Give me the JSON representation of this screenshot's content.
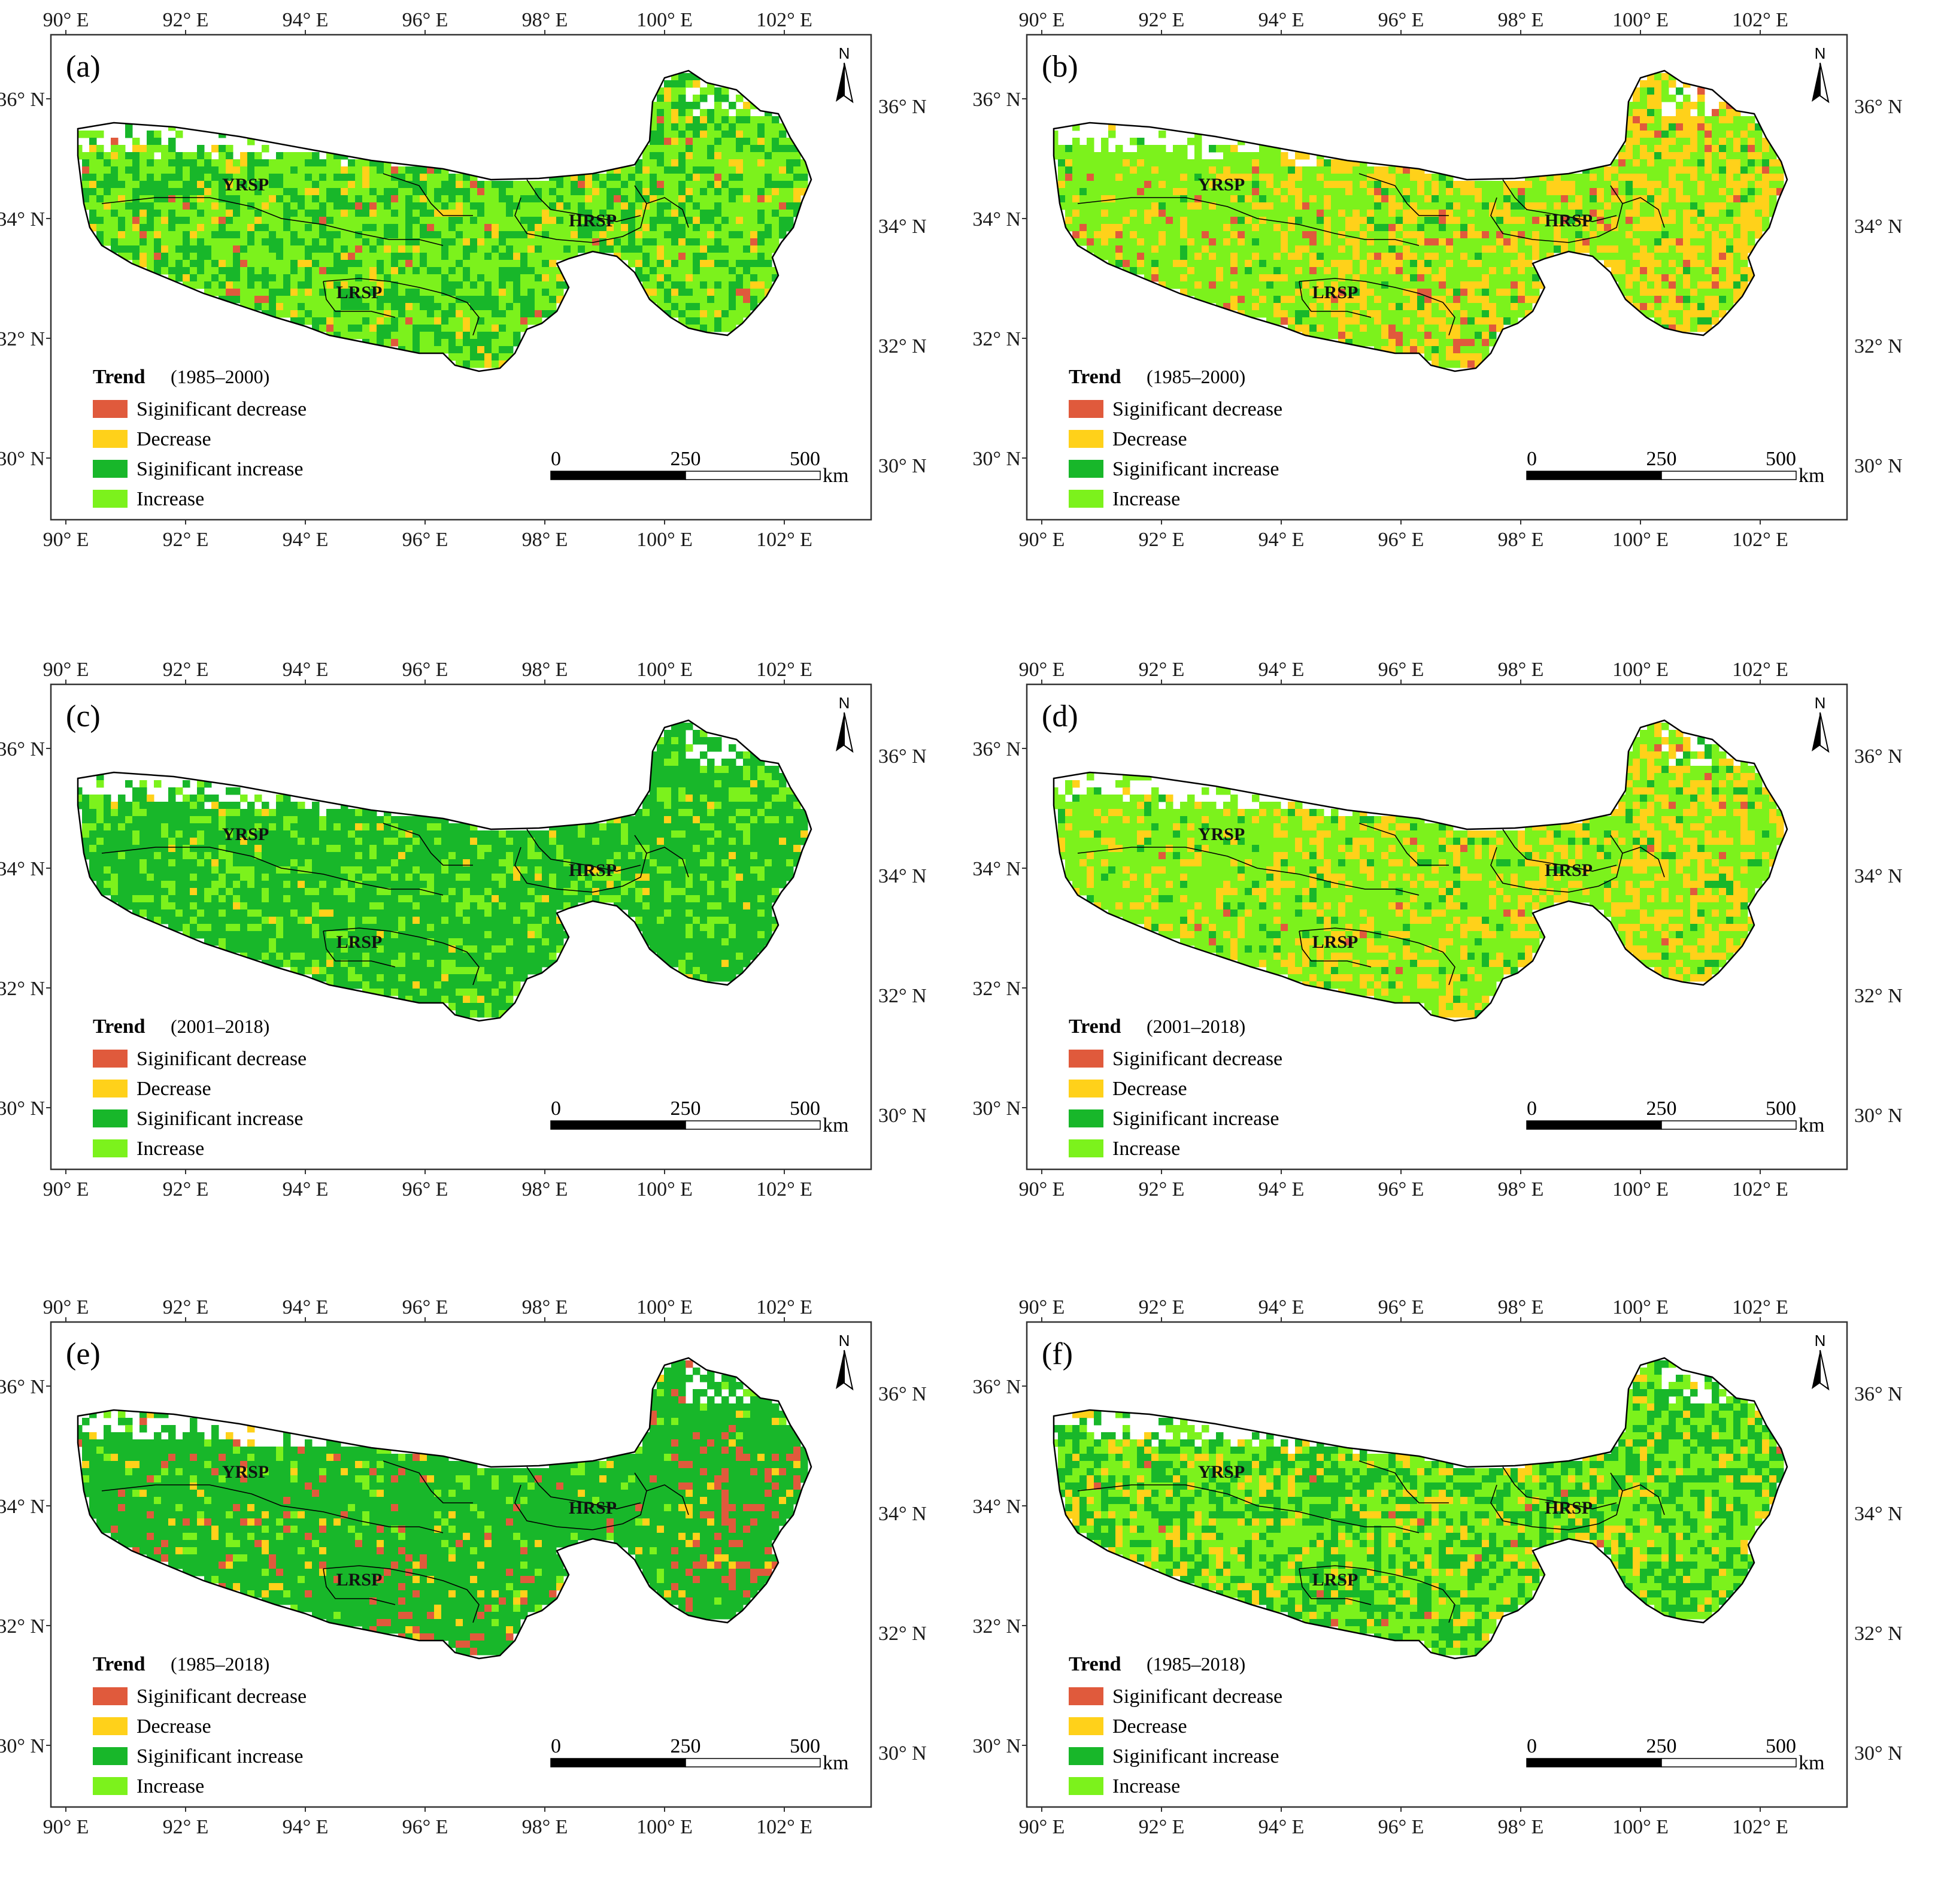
{
  "figure": {
    "longitude_labels": [
      "90° E",
      "92° E",
      "94° E",
      "96° E",
      "98° E",
      "100° E",
      "102° E"
    ],
    "latitude_labels": [
      "36° N",
      "34° N",
      "32° N",
      "30° N"
    ],
    "regions": [
      "YRSP",
      "LRSP",
      "HRSP"
    ],
    "legend": {
      "title": "Trend",
      "items": [
        {
          "label": "Siginificant decrease",
          "color": "#e05a3c"
        },
        {
          "label": "Decrease",
          "color": "#ffd11a"
        },
        {
          "label": "Siginificant increase",
          "color": "#18b72a"
        },
        {
          "label": "Increase",
          "color": "#7cf21c"
        }
      ]
    },
    "scale_bar": {
      "ticks": [
        "0",
        "250",
        "500"
      ],
      "unit": "km"
    },
    "north_label": "N",
    "colors": {
      "outline": "#000000",
      "no_data": "#ffffff",
      "frame": "#333333"
    }
  },
  "panels": [
    {
      "letter": "(a)",
      "period": "(1985–2000)",
      "dominant": "mixed-green",
      "mix": {
        "sigdec": 0.02,
        "dec": 0.08,
        "siginc": 0.35,
        "inc": 0.55
      }
    },
    {
      "letter": "(b)",
      "period": "(1985–2000)",
      "dominant": "mixed-yellow",
      "mix": {
        "sigdec": 0.05,
        "dec": 0.35,
        "siginc": 0.05,
        "inc": 0.55
      }
    },
    {
      "letter": "(c)",
      "period": "(2001–2018)",
      "dominant": "dark-green",
      "mix": {
        "sigdec": 0.0,
        "dec": 0.03,
        "siginc": 0.75,
        "inc": 0.22
      }
    },
    {
      "letter": "(d)",
      "period": "(2001–2018)",
      "dominant": "mixed-yellow",
      "mix": {
        "sigdec": 0.01,
        "dec": 0.3,
        "siginc": 0.08,
        "inc": 0.61
      }
    },
    {
      "letter": "(e)",
      "period": "(1985–2018)",
      "dominant": "dark-green",
      "mix": {
        "sigdec": 0.06,
        "dec": 0.04,
        "siginc": 0.82,
        "inc": 0.08
      }
    },
    {
      "letter": "(f)",
      "period": "(1985–2018)",
      "dominant": "mixed-green",
      "mix": {
        "sigdec": 0.01,
        "dec": 0.14,
        "siginc": 0.4,
        "inc": 0.45
      }
    }
  ]
}
